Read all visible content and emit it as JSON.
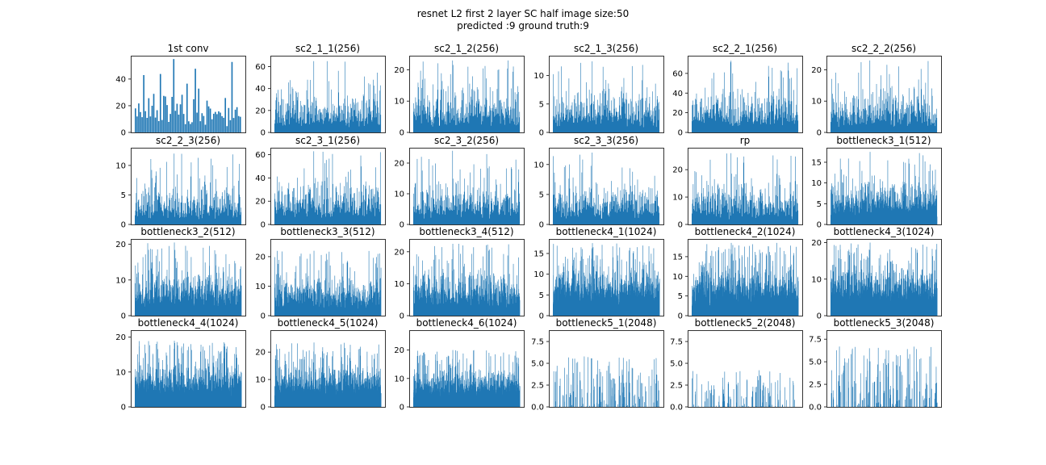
{
  "figure": {
    "title_line1": "resnet L2 first 2 layer SC half image size:50",
    "title_line2": "predicted :9 ground truth:9"
  },
  "colors": {
    "bar": "#1f77b4",
    "axis": "#000000",
    "background": "#ffffff"
  },
  "chart_data": [
    {
      "type": "bar",
      "title": "1st conv",
      "ylim": [
        0,
        57.5
      ],
      "yticks": [
        0,
        20,
        40
      ],
      "n_bars": 64,
      "value_range": [
        0,
        55
      ],
      "seed": 1
    },
    {
      "type": "bar",
      "title": "sc2_1_1(256)",
      "ylim": [
        0,
        70
      ],
      "yticks": [
        0,
        20,
        40,
        60
      ],
      "n_bars": 256,
      "value_range": [
        0,
        65
      ],
      "seed": 2
    },
    {
      "type": "bar",
      "title": "sc2_1_2(256)",
      "ylim": [
        0,
        24.5
      ],
      "yticks": [
        0,
        10,
        20
      ],
      "n_bars": 256,
      "value_range": [
        0,
        23
      ],
      "seed": 3
    },
    {
      "type": "bar",
      "title": "sc2_1_3(256)",
      "ylim": [
        0,
        13.5
      ],
      "yticks": [
        0,
        5,
        10
      ],
      "n_bars": 256,
      "value_range": [
        0,
        12.5
      ],
      "seed": 4
    },
    {
      "type": "bar",
      "title": "sc2_2_1(256)",
      "ylim": [
        0,
        78
      ],
      "yticks": [
        0,
        20,
        40,
        60
      ],
      "n_bars": 256,
      "value_range": [
        0,
        73
      ],
      "seed": 5
    },
    {
      "type": "bar",
      "title": "sc2_2_2(256)",
      "ylim": [
        0,
        24.5
      ],
      "yticks": [
        0,
        10,
        20
      ],
      "n_bars": 256,
      "value_range": [
        0,
        23
      ],
      "seed": 6
    },
    {
      "type": "bar",
      "title": "sc2_2_3(256)",
      "ylim": [
        0,
        13
      ],
      "yticks": [
        0,
        5,
        10
      ],
      "n_bars": 256,
      "value_range": [
        0,
        12
      ],
      "seed": 7
    },
    {
      "type": "bar",
      "title": "sc2_3_1(256)",
      "ylim": [
        0,
        66
      ],
      "yticks": [
        0,
        20,
        40,
        60
      ],
      "n_bars": 256,
      "value_range": [
        0,
        63
      ],
      "seed": 8
    },
    {
      "type": "bar",
      "title": "sc2_3_2(256)",
      "ylim": [
        0,
        25
      ],
      "yticks": [
        0,
        10,
        20
      ],
      "n_bars": 256,
      "value_range": [
        0,
        24
      ],
      "seed": 9
    },
    {
      "type": "bar",
      "title": "sc2_3_3(256)",
      "ylim": [
        0,
        12.8
      ],
      "yticks": [
        0,
        5,
        10
      ],
      "n_bars": 256,
      "value_range": [
        0,
        12
      ],
      "seed": 10
    },
    {
      "type": "bar",
      "title": "rp",
      "ylim": [
        0,
        28
      ],
      "yticks": [
        0,
        10,
        20
      ],
      "n_bars": 256,
      "value_range": [
        0,
        26
      ],
      "seed": 11
    },
    {
      "type": "bar",
      "title": "bottleneck3_1(512)",
      "ylim": [
        0,
        18.5
      ],
      "yticks": [
        0,
        5,
        10,
        15
      ],
      "n_bars": 512,
      "value_range": [
        0,
        17.5
      ],
      "seed": 12
    },
    {
      "type": "bar",
      "title": "bottleneck3_2(512)",
      "ylim": [
        0,
        21.5
      ],
      "yticks": [
        0,
        10,
        20
      ],
      "n_bars": 512,
      "value_range": [
        0,
        20.5
      ],
      "seed": 13
    },
    {
      "type": "bar",
      "title": "bottleneck3_3(512)",
      "ylim": [
        0,
        26
      ],
      "yticks": [
        0,
        10,
        20
      ],
      "n_bars": 512,
      "value_range": [
        0,
        22
      ],
      "seed": 14
    },
    {
      "type": "bar",
      "title": "bottleneck3_4(512)",
      "ylim": [
        0,
        24
      ],
      "yticks": [
        0,
        10,
        20
      ],
      "n_bars": 512,
      "value_range": [
        0,
        22.5
      ],
      "seed": 15
    },
    {
      "type": "bar",
      "title": "bottleneck4_1(1024)",
      "ylim": [
        0,
        18.5
      ],
      "yticks": [
        0,
        5,
        10,
        15
      ],
      "n_bars": 1024,
      "value_range": [
        0,
        17.5
      ],
      "seed": 16
    },
    {
      "type": "bar",
      "title": "bottleneck4_2(1024)",
      "ylim": [
        0,
        19.5
      ],
      "yticks": [
        0,
        5,
        10,
        15
      ],
      "n_bars": 1024,
      "value_range": [
        0,
        18.5
      ],
      "seed": 17
    },
    {
      "type": "bar",
      "title": "bottleneck4_3(1024)",
      "ylim": [
        0,
        21
      ],
      "yticks": [
        0,
        10,
        20
      ],
      "n_bars": 1024,
      "value_range": [
        0,
        20
      ],
      "seed": 18
    },
    {
      "type": "bar",
      "title": "bottleneck4_4(1024)",
      "ylim": [
        0,
        22
      ],
      "yticks": [
        0,
        10,
        20
      ],
      "n_bars": 1024,
      "value_range": [
        0,
        19
      ],
      "seed": 19
    },
    {
      "type": "bar",
      "title": "bottleneck4_5(1024)",
      "ylim": [
        0,
        28
      ],
      "yticks": [
        0,
        10,
        20
      ],
      "n_bars": 1024,
      "value_range": [
        0,
        23.5
      ],
      "seed": 20
    },
    {
      "type": "bar",
      "title": "bottleneck4_6(1024)",
      "ylim": [
        0,
        27
      ],
      "yticks": [
        0,
        10,
        20
      ],
      "n_bars": 1024,
      "value_range": [
        0,
        20
      ],
      "seed": 21
    },
    {
      "type": "bar",
      "title": "bottleneck5_1(2048)",
      "ylim": [
        0,
        8.8
      ],
      "yticks": [
        0.0,
        2.5,
        5.0,
        7.5
      ],
      "tick_format": "1",
      "n_bars": 2048,
      "value_range": [
        0,
        5.8
      ],
      "sparse": true,
      "seed": 22
    },
    {
      "type": "bar",
      "title": "bottleneck5_2(2048)",
      "ylim": [
        0,
        8.8
      ],
      "yticks": [
        0.0,
        2.5,
        5.0,
        7.5
      ],
      "tick_format": "1",
      "n_bars": 2048,
      "value_range": [
        0,
        4.3
      ],
      "sparse": true,
      "seed": 23
    },
    {
      "type": "bar",
      "title": "bottleneck5_3(2048)",
      "ylim": [
        0,
        8.5
      ],
      "yticks": [
        0.0,
        2.5,
        5.0,
        7.5
      ],
      "tick_format": "1",
      "n_bars": 2048,
      "value_range": [
        0,
        6.7
      ],
      "sparse": true,
      "seed": 24
    }
  ]
}
